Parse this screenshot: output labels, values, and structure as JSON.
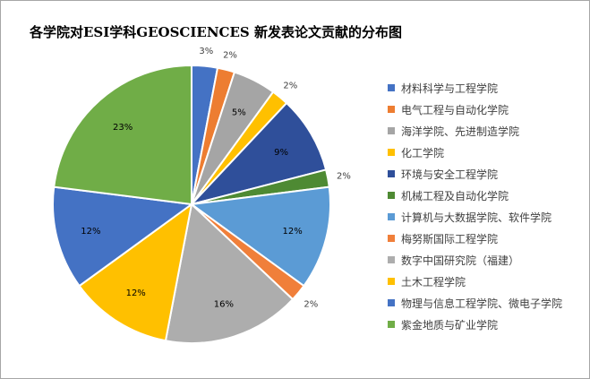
{
  "chart_data": {
    "type": "pie",
    "title": "各学院对ESI学科GEOSCIENCES 新发表论文贡献的分布图",
    "legend_position": "right",
    "slices": [
      {
        "name": "材料科学与工程学院",
        "value": 3,
        "label": "3%",
        "color": "#4472C4"
      },
      {
        "name": "电气工程与自动化学院",
        "value": 2,
        "label": "2%",
        "color": "#ED7D31"
      },
      {
        "name": "海洋学院、先进制造学院",
        "value": 5,
        "label": "5%",
        "color": "#A5A5A5"
      },
      {
        "name": "化工学院",
        "value": 2,
        "label": "2%",
        "color": "#FFC000"
      },
      {
        "name": "环境与安全工程学院",
        "value": 9,
        "label": "9%",
        "color": "#2F4F9A"
      },
      {
        "name": "机械工程及自动化学院",
        "value": 2,
        "label": "2%",
        "color": "#4E8A33"
      },
      {
        "name": "计算机与大数据学院、软件学院",
        "value": 12,
        "label": "12%",
        "color": "#5B9BD5"
      },
      {
        "name": "梅努斯国际工程学院",
        "value": 2,
        "label": "2%",
        "color": "#F07F3A"
      },
      {
        "name": "数字中国研究院（福建）",
        "value": 16,
        "label": "16%",
        "color": "#ADADAD"
      },
      {
        "name": "土木工程学院",
        "value": 12,
        "label": "12%",
        "color": "#FFC000"
      },
      {
        "name": "物理与信息工程学院、微电子学院",
        "value": 12,
        "label": "12%",
        "color": "#4472C4"
      },
      {
        "name": "紫金地质与矿业学院",
        "value": 23,
        "label": "23%",
        "color": "#70AD47"
      }
    ]
  }
}
